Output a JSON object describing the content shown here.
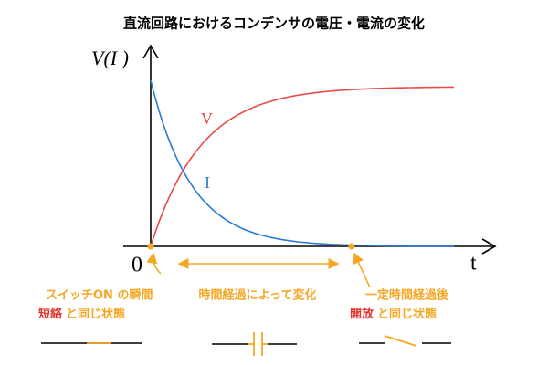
{
  "title": "直流回路におけるコンデンサの電圧・電流の変化",
  "axes": {
    "y_label": "V(I )",
    "x_label": "t",
    "origin": "0"
  },
  "curves": {
    "voltage": "V",
    "current": "I"
  },
  "annotations": {
    "switch_on": {
      "line1": "スイッチON の瞬間",
      "highlight": "短絡",
      "line2": "と同じ状態"
    },
    "transition": "時間経過によって変化",
    "steady": {
      "line1": "一定時間経過後",
      "highlight": "開放",
      "line2": "と同じ状態"
    }
  }
}
